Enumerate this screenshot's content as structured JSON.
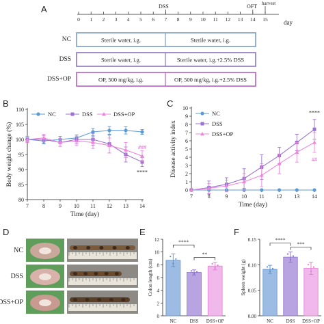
{
  "panel_a": {
    "letter": "A",
    "timeline": {
      "days": [
        "0",
        "1",
        "2",
        "3",
        "4",
        "5",
        "6",
        "7",
        "8",
        "9",
        "10",
        "11",
        "12",
        "13",
        "14",
        "15"
      ],
      "unit": "day",
      "dss_label": "DSS",
      "oft_label": "OFT",
      "harvest_label": "harvest"
    },
    "groups": [
      {
        "name": "NC",
        "color": "#7b9bc8",
        "before": "Sterile water, i.g.",
        "after": "Sterile water, i.g."
      },
      {
        "name": "DSS",
        "color": "#8a75bf",
        "before": "Sterile water, i.g.",
        "after": "Sterile water, i.g.+2.5% DSS"
      },
      {
        "name": "DSS+OP",
        "color": "#b25fc0",
        "before": "OP, 500 mg/kg, i.g.",
        "after": "OP, 500 mg/kg, i.g.+2.5% DSS"
      }
    ]
  },
  "panel_b": {
    "letter": "B"
  },
  "panel_c": {
    "letter": "C"
  },
  "panel_d": {
    "letter": "D",
    "rows": [
      {
        "label": "NC",
        "photo_tone": "#c9a79a",
        "colon_tone": "#7a5a3a"
      },
      {
        "label": "DSS",
        "photo_tone": "#d8b2aa",
        "colon_tone": "#6b4a2e"
      },
      {
        "label": "DSS+OP",
        "photo_tone": "#c99a8f",
        "colon_tone": "#5a3e28"
      }
    ]
  },
  "panel_e": {
    "letter": "E"
  },
  "panel_f": {
    "letter": "F"
  },
  "chart_data": [
    {
      "panel": "B",
      "type": "line",
      "xlabel": "Time (day)",
      "ylabel": "Body weight change (%)",
      "x": [
        7,
        8,
        9,
        10,
        11,
        12,
        13,
        14
      ],
      "xlim": [
        7,
        14
      ],
      "ylim": [
        80,
        110
      ],
      "yticks": [
        80,
        85,
        90,
        95,
        100,
        105,
        110
      ],
      "legend_position": "top",
      "series": [
        {
          "name": "NC",
          "color": "#5b9bd5",
          "marker": "circle",
          "values": [
            100,
            99.5,
            100,
            100.5,
            102.5,
            103,
            103,
            102.5
          ],
          "errors": [
            0.8,
            1,
            1,
            1,
            1.2,
            1.3,
            1.2,
            0.8
          ]
        },
        {
          "name": "DSS",
          "color": "#9b72cf",
          "marker": "square",
          "values": [
            100,
            100,
            99,
            100,
            100,
            98.5,
            95,
            92.5
          ],
          "errors": [
            1,
            1.2,
            1.3,
            1.5,
            2,
            3,
            2.5,
            1.5
          ]
        },
        {
          "name": "DSS+OP",
          "color": "#ec86dc",
          "marker": "triangle",
          "values": [
            100,
            100.5,
            99,
            99.5,
            99,
            98,
            96.5,
            94.5
          ],
          "errors": [
            1,
            1.2,
            1.3,
            1.5,
            2,
            2.5,
            2.5,
            1.8
          ]
        }
      ],
      "annotations": [
        {
          "text": "###",
          "x": 14,
          "y": 96.8,
          "color": "#cc5fc0"
        },
        {
          "text": "****",
          "x": 14,
          "y": 88.5,
          "color": "#222222"
        }
      ]
    },
    {
      "panel": "C",
      "type": "line",
      "xlabel": "Time (day)",
      "ylabel": "Disease activity index",
      "x": [
        7,
        8,
        9,
        10,
        11,
        12,
        13,
        14
      ],
      "xlim": [
        7,
        14
      ],
      "ylim": [
        0,
        10
      ],
      "yticks": [
        0,
        1,
        2,
        3,
        4,
        5,
        6,
        7,
        8,
        9,
        10
      ],
      "legend_position": "top-left",
      "series": [
        {
          "name": "NC",
          "color": "#5b9bd5",
          "marker": "circle",
          "values": [
            0,
            0,
            0,
            0,
            0,
            0,
            0,
            0
          ],
          "errors": [
            0,
            0,
            0,
            0,
            0,
            0,
            0,
            0
          ]
        },
        {
          "name": "DSS",
          "color": "#9b72cf",
          "marker": "square",
          "values": [
            0,
            0.3,
            0.7,
            1.4,
            2.8,
            4.2,
            5.8,
            7.4
          ],
          "errors": [
            0,
            0.8,
            0.8,
            1.2,
            1.5,
            1,
            1,
            1.2
          ]
        },
        {
          "name": "DSS+OP",
          "color": "#ec86dc",
          "marker": "triangle",
          "values": [
            0,
            0.2,
            0.5,
            1.0,
            1.8,
            3.2,
            4.6,
            5.8
          ],
          "errors": [
            0,
            0.6,
            0.7,
            1,
            1.4,
            1.2,
            1.2,
            1.2
          ]
        }
      ],
      "annotations": [
        {
          "text": "****",
          "x": 14,
          "y": 9.2,
          "color": "#222222"
        },
        {
          "text": "##",
          "x": 14,
          "y": 3.5,
          "color": "#cc5fc0"
        }
      ]
    },
    {
      "panel": "E",
      "type": "bar",
      "ylabel": "Colon length (cm)",
      "categories": [
        "NC",
        "DSS",
        "DSS+OP"
      ],
      "values": [
        8.7,
        6.8,
        7.8
      ],
      "errors": [
        1.0,
        0.4,
        0.6
      ],
      "colors": [
        "#9dbce3",
        "#b9a4e2",
        "#f1b8eb"
      ],
      "edge_colors": [
        "#5b8fcf",
        "#8a6fc7",
        "#e07bd3"
      ],
      "ylim": [
        0,
        12
      ],
      "yticks": [
        0,
        2,
        4,
        6,
        8,
        10,
        12
      ],
      "significance": [
        {
          "from": 0,
          "to": 1,
          "label": "****"
        },
        {
          "from": 1,
          "to": 2,
          "label": "**"
        }
      ]
    },
    {
      "panel": "F",
      "type": "bar",
      "ylabel": "Spleen weight (g)",
      "categories": [
        "NC",
        "DSS",
        "DSS+OP"
      ],
      "values": [
        0.091,
        0.115,
        0.093
      ],
      "errors": [
        0.008,
        0.01,
        0.012
      ],
      "colors": [
        "#9dbce3",
        "#b9a4e2",
        "#f1b8eb"
      ],
      "edge_colors": [
        "#5b8fcf",
        "#8a6fc7",
        "#e07bd3"
      ],
      "ylim": [
        0,
        0.15
      ],
      "yticks": [
        0,
        0.05,
        0.1,
        0.15
      ],
      "yticklabels": [
        "0.00",
        "0.05",
        "0.10",
        "0.15"
      ],
      "significance": [
        {
          "from": 0,
          "to": 1,
          "label": "****"
        },
        {
          "from": 1,
          "to": 2,
          "label": "***"
        }
      ]
    }
  ]
}
